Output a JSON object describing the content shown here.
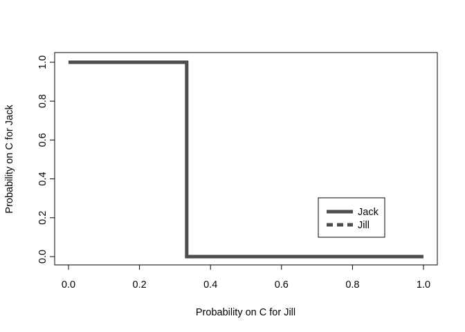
{
  "chart_data": {
    "type": "line",
    "title": "",
    "xlabel": "Probability on C for Jill",
    "ylabel": "Probability on C for Jack",
    "xlim": [
      0,
      1
    ],
    "ylim": [
      0,
      1
    ],
    "x_ticks": [
      "0.0",
      "0.2",
      "0.4",
      "0.6",
      "0.8",
      "1.0"
    ],
    "y_ticks": [
      "0.0",
      "0.2",
      "0.4",
      "0.6",
      "0.8",
      "1.0"
    ],
    "grid": false,
    "legend_position": "bottom-right",
    "series": [
      {
        "name": "Jack",
        "line_style": "solid",
        "color": "#4d4d4d",
        "x": [
          0.0,
          0.333,
          0.333,
          1.0
        ],
        "y": [
          1.0,
          1.0,
          0.0,
          0.0
        ]
      },
      {
        "name": "Jill",
        "line_style": "dashed",
        "color": "#4d4d4d",
        "x": [],
        "y": []
      }
    ]
  }
}
